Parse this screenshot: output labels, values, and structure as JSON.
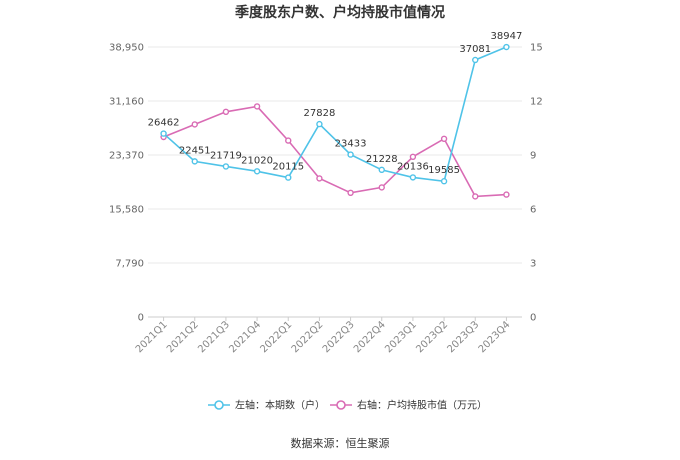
{
  "chart_data": {
    "type": "line",
    "title": "季度股东户数、户均持股市值情况",
    "categories": [
      "2021Q1",
      "2021Q2",
      "2021Q3",
      "2021Q4",
      "2022Q1",
      "2022Q2",
      "2022Q3",
      "2022Q4",
      "2023Q1",
      "2023Q2",
      "2023Q3",
      "2023Q4"
    ],
    "left_axis": {
      "ticks": [
        "0",
        "7,790",
        "15,580",
        "23,370",
        "31,160",
        "38,950"
      ],
      "ylim": [
        0,
        38950
      ]
    },
    "right_axis": {
      "ticks": [
        "0",
        "3",
        "6",
        "9",
        "12",
        "15"
      ],
      "ylim": [
        0,
        15
      ]
    },
    "series": [
      {
        "name": "左轴：本期数（户）",
        "axis": "left",
        "color": "#4fc3e8",
        "values": [
          26462,
          22451,
          21719,
          21020,
          20115,
          27828,
          23433,
          21228,
          20136,
          19585,
          37081,
          38947
        ],
        "labels": [
          "26462",
          "22451",
          "21719",
          "21020",
          "20115",
          "27828",
          "23433",
          "21228",
          "20136",
          "19585",
          "37081",
          "38947"
        ]
      },
      {
        "name": "右轴：户均持股市值（万元）",
        "axis": "right",
        "color": "#d96bb4",
        "values": [
          10.0,
          10.7,
          11.4,
          11.7,
          9.8,
          7.7,
          6.9,
          7.2,
          8.9,
          9.9,
          6.7,
          6.8
        ]
      }
    ],
    "grid": true,
    "legend_position": "bottom"
  },
  "source": "数据来源：恒生聚源"
}
